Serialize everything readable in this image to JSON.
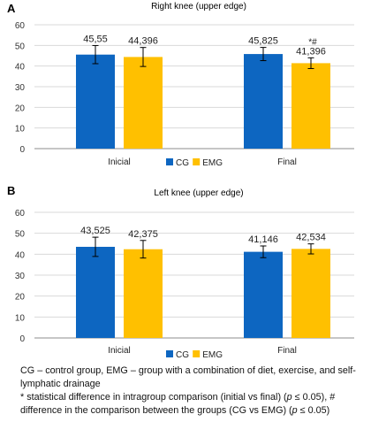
{
  "chart_data": [
    {
      "type": "bar",
      "panel_label": "A",
      "title": "Right knee (upper edge)",
      "categories": [
        "Inicial",
        "Final"
      ],
      "series": [
        {
          "name": "CG",
          "values": [
            45.55,
            45.825
          ],
          "errors": [
            4.4,
            3.2
          ],
          "labels": [
            "45,55",
            "45,825"
          ],
          "color": "#0d66c1"
        },
        {
          "name": "EMG",
          "values": [
            44.396,
            41.396
          ],
          "errors": [
            4.6,
            2.6
          ],
          "labels": [
            "44,396",
            "41,396"
          ],
          "color": "#ffc000"
        }
      ],
      "annotations": [
        {
          "category": "Final",
          "series": "EMG",
          "text": "*#"
        }
      ],
      "ylim": [
        0,
        60
      ],
      "yticks": [
        0,
        10,
        20,
        30,
        40,
        50,
        60
      ],
      "grid": true,
      "legend": "bottom-center"
    },
    {
      "type": "bar",
      "panel_label": "B",
      "title": "Left knee (upper edge)",
      "categories": [
        "Inicial",
        "Final"
      ],
      "series": [
        {
          "name": "CG",
          "values": [
            43.525,
            41.146
          ],
          "errors": [
            4.6,
            2.8
          ],
          "labels": [
            "43,525",
            "41,146"
          ],
          "color": "#0d66c1"
        },
        {
          "name": "EMG",
          "values": [
            42.375,
            42.534
          ],
          "errors": [
            4.2,
            2.4
          ],
          "labels": [
            "42,375",
            "42,534"
          ],
          "color": "#ffc000"
        }
      ],
      "annotations": [],
      "ylim": [
        0,
        60
      ],
      "yticks": [
        0,
        10,
        20,
        30,
        40,
        50,
        60
      ],
      "grid": true,
      "legend": "bottom-center"
    }
  ],
  "caption": {
    "line1": "CG – control group, EMG – group with a combination of diet, exercise, and self-lymphatic drainage",
    "line2_prefix": "* statistical difference in intragroup comparison (initial vs final) (",
    "p_symbol": "p",
    "line2_suffix": " ≤ 0.05), # difference in the comparison between the groups (CG vs EMG) (",
    "p_symbol_2": "p",
    "line2_end": " ≤ 0.05)"
  }
}
